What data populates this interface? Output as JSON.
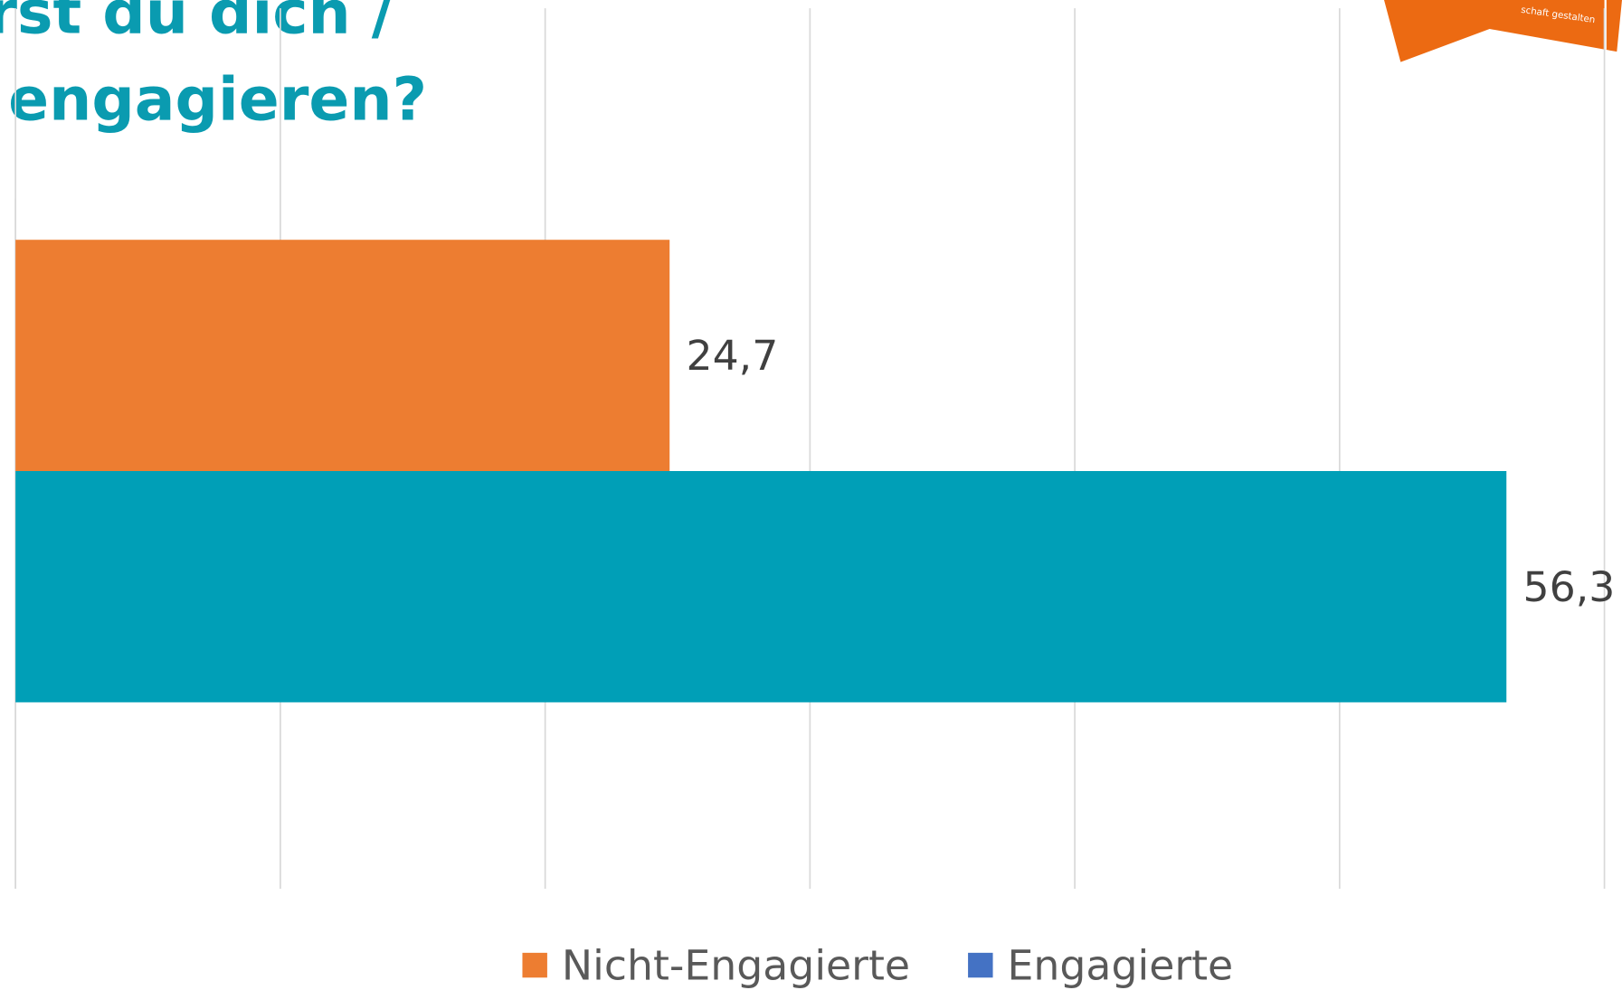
{
  "chart_data": {
    "type": "hbar",
    "title_lines": [
      "rst du dich /",
      "engagieren?"
    ],
    "logo_text": "schaft gestalten",
    "categories": [
      null
    ],
    "series": [
      {
        "name": "Nicht-Engagierte",
        "color": "#ed7d31",
        "legend_color": "#ed7d31",
        "values": [
          24.7
        ],
        "value_labels": [
          "24,7"
        ]
      },
      {
        "name": "Engagierte",
        "color": "#009fb7",
        "legend_color": "#4472c4",
        "values": [
          56.3
        ],
        "value_labels": [
          "56,3"
        ]
      }
    ],
    "xlim": [
      0,
      60
    ],
    "xticks": [
      0,
      10,
      20,
      30,
      40,
      50,
      60
    ],
    "grid": true
  }
}
